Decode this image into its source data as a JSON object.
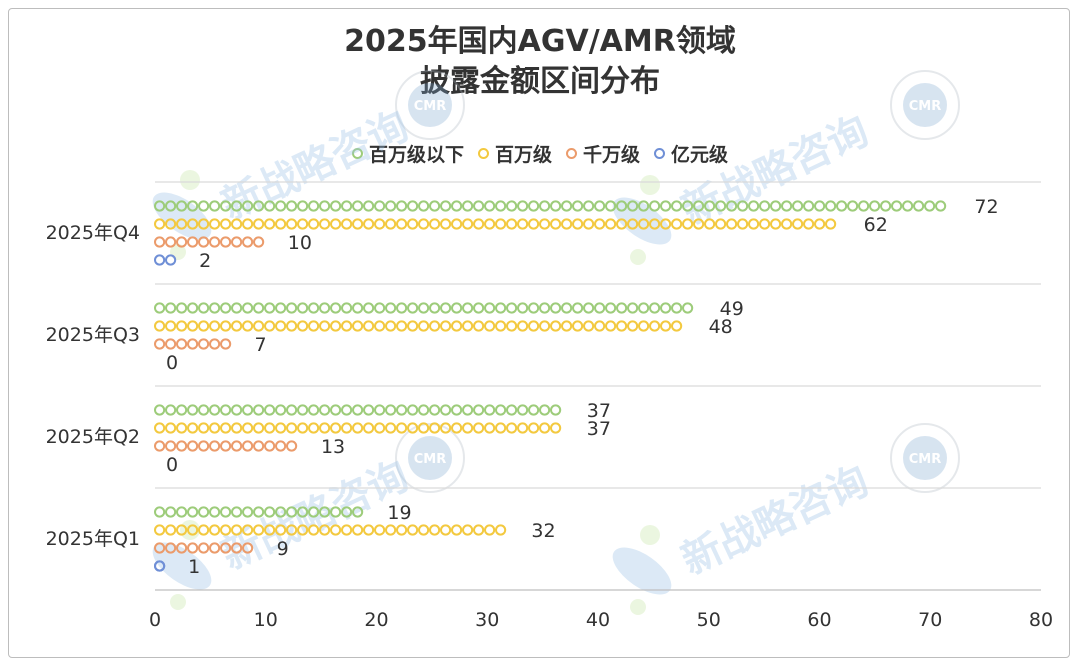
{
  "title_lines": [
    "2025年国内AGV/AMR领域",
    "披露金额区间分布"
  ],
  "watermark": "新战略咨询",
  "watermark_logo": "CMR",
  "colors": {
    "百万级以下": "#9dcc7a",
    "百万级": "#f3c93f",
    "千万级": "#eb9b6b",
    "亿元级": "#6f8fd6",
    "grid": "#d9d9d9",
    "text": "#333333"
  },
  "chart_data": {
    "type": "bar",
    "orientation": "horizontal",
    "categories": [
      "2025年Q1",
      "2025年Q2",
      "2025年Q3",
      "2025年Q4"
    ],
    "series": [
      {
        "name": "百万级以下",
        "values": [
          19,
          37,
          49,
          72
        ]
      },
      {
        "name": "百万级",
        "values": [
          32,
          37,
          48,
          62
        ]
      },
      {
        "name": "千万级",
        "values": [
          9,
          13,
          7,
          10
        ]
      },
      {
        "name": "亿元级",
        "values": [
          1,
          0,
          0,
          2
        ]
      }
    ],
    "xlim": [
      0,
      80
    ],
    "xticks": [
      0,
      10,
      20,
      30,
      40,
      50,
      60,
      70,
      80
    ],
    "legend": "top",
    "grid": true,
    "xlabel": "",
    "ylabel": ""
  }
}
